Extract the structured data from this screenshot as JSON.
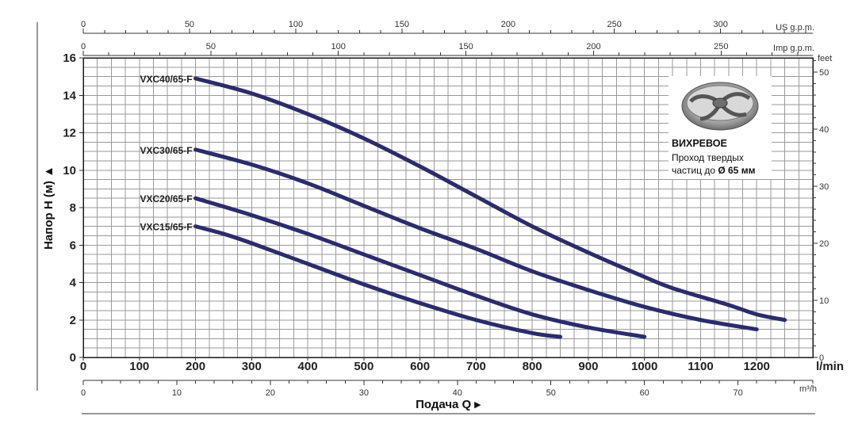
{
  "chart_data": {
    "type": "line",
    "x_unit_primary": "l/min",
    "y_unit_primary": "Напор H (м)",
    "xlabel": "Подача Q",
    "xlim": [
      0,
      1300
    ],
    "ylim": [
      0,
      16
    ],
    "x_ticks": [
      0,
      100,
      200,
      300,
      400,
      500,
      600,
      700,
      800,
      900,
      1000,
      1100,
      1200
    ],
    "y_ticks": [
      0,
      2,
      4,
      6,
      8,
      10,
      12,
      14,
      16
    ],
    "grid": true,
    "series": [
      {
        "name": "VXC40/65-F",
        "x": [
          200,
          300,
          400,
          500,
          600,
          700,
          800,
          900,
          1000,
          1050,
          1150,
          1200,
          1250
        ],
        "y": [
          14.9,
          14.1,
          13.0,
          11.7,
          10.2,
          8.6,
          7.0,
          5.6,
          4.3,
          3.7,
          2.8,
          2.3,
          2.0
        ]
      },
      {
        "name": "VXC30/65-F",
        "x": [
          200,
          300,
          400,
          500,
          600,
          700,
          800,
          900,
          1000,
          1100,
          1200
        ],
        "y": [
          11.1,
          10.3,
          9.3,
          8.1,
          6.9,
          5.8,
          4.6,
          3.6,
          2.7,
          2.0,
          1.5
        ]
      },
      {
        "name": "VXC20/65-F",
        "x": [
          200,
          300,
          400,
          500,
          600,
          700,
          800,
          900,
          1000
        ],
        "y": [
          8.5,
          7.6,
          6.6,
          5.5,
          4.4,
          3.3,
          2.3,
          1.6,
          1.1
        ]
      },
      {
        "name": "VXC15/65-F",
        "x": [
          200,
          250,
          300,
          400,
          500,
          600,
          700,
          800,
          850
        ],
        "y": [
          7.0,
          6.6,
          6.1,
          5.0,
          3.9,
          2.9,
          2.0,
          1.3,
          1.1
        ]
      }
    ],
    "top_axis_us": {
      "unit": "US g.p.m.",
      "labels": [
        "0",
        "50",
        "100",
        "150",
        "200",
        "250",
        "300"
      ],
      "values": [
        0,
        50,
        100,
        150,
        200,
        250,
        300
      ]
    },
    "top_axis_imp": {
      "unit": "Imp g.p.m.",
      "labels": [
        "0",
        "50",
        "100",
        "150",
        "200",
        "250"
      ],
      "values": [
        0,
        50,
        100,
        150,
        200,
        250
      ]
    },
    "right_axis_feet": {
      "unit": "feet",
      "labels": [
        "0",
        "10",
        "20",
        "30",
        "40",
        "50"
      ],
      "values": [
        0,
        10,
        20,
        30,
        40,
        50
      ]
    },
    "bottom_axis_m3h": {
      "unit": "m³/h",
      "labels": [
        "0",
        "10",
        "20",
        "30",
        "40",
        "50",
        "60",
        "70"
      ],
      "values": [
        0,
        10,
        20,
        30,
        40,
        50,
        60,
        70
      ]
    }
  },
  "info_box": {
    "title": "ВИХРЕВОЕ",
    "line1": "Проход твердых",
    "line2_prefix": "частиц до ",
    "line2_value": "Ø 65 мм",
    "image_icon": "impeller-icon"
  },
  "colors": {
    "curve": "#2b2c6b",
    "grid": "#9a9a9a"
  }
}
